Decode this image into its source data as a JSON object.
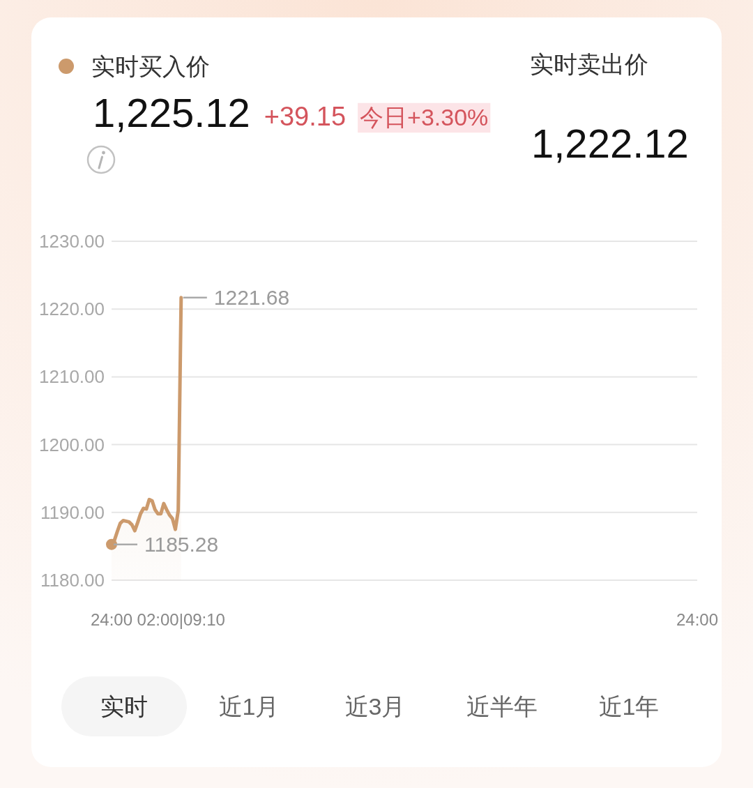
{
  "chart_data": {
    "type": "area",
    "categories": [
      "24:00",
      null,
      null,
      null,
      null,
      null,
      null,
      null,
      null,
      null,
      null,
      null,
      null,
      null,
      null,
      null,
      null,
      null,
      null,
      null,
      null,
      null,
      null,
      null,
      "02:00|09:10",
      null,
      null,
      null,
      null,
      null,
      null,
      null,
      null,
      null,
      null,
      null,
      null,
      null,
      null,
      null,
      null,
      null,
      null,
      null,
      null,
      null,
      null,
      null,
      null,
      null,
      null,
      null,
      null,
      null,
      null,
      null,
      null,
      null,
      null,
      null,
      null,
      null,
      null,
      null,
      null,
      null,
      null,
      null,
      null,
      null,
      null,
      null,
      null,
      null,
      null,
      null,
      null,
      null,
      null,
      null,
      null,
      null,
      null,
      null,
      null,
      null,
      null,
      null,
      null,
      null,
      null,
      null,
      null,
      null,
      null,
      null,
      null,
      null,
      null,
      null,
      null,
      null,
      null,
      null,
      null,
      null,
      null,
      null,
      null,
      null,
      null,
      null,
      null,
      null,
      null,
      null,
      null,
      null,
      null,
      null,
      null,
      null,
      null,
      null,
      null,
      null,
      null,
      null,
      null,
      null,
      null,
      null,
      null,
      null,
      null,
      null,
      null,
      null,
      null,
      null,
      null,
      null,
      null,
      null,
      null,
      null,
      null,
      null,
      null,
      null,
      null,
      null,
      null,
      null,
      null,
      null,
      null,
      null,
      null,
      null,
      null,
      null,
      null,
      null,
      null,
      null,
      null,
      null,
      null,
      null,
      null,
      null,
      null,
      null,
      null,
      null,
      null,
      null,
      null,
      null,
      null,
      null,
      null,
      null,
      null,
      null,
      null,
      null,
      null,
      null,
      null,
      null,
      null,
      null,
      null,
      null,
      null,
      null,
      null,
      null,
      null,
      null,
      "24:00"
    ],
    "series": [
      {
        "name": "实时买入价",
        "color": "#cc9a6c",
        "values": [
          1185.28,
          1185.9,
          1187.2,
          1188.4,
          1188.8,
          1188.7,
          1188.6,
          1188.2,
          1187.3,
          1188.5,
          1189.8,
          1190.6,
          1190.5,
          1191.9,
          1191.7,
          1190.4,
          1189.8,
          1189.8,
          1191.3,
          1190.4,
          1189.6,
          1189.1,
          1187.5,
          1190.3,
          1221.68,
          null,
          null,
          null,
          null,
          null,
          null,
          null,
          null,
          null,
          null,
          null,
          null,
          null,
          null,
          null,
          null,
          null,
          null,
          null,
          null,
          null,
          null,
          null,
          null,
          null,
          null,
          null,
          null,
          null,
          null,
          null,
          null,
          null,
          null,
          null,
          null,
          null,
          null,
          null,
          null,
          null,
          null,
          null,
          null,
          null,
          null,
          null,
          null,
          null,
          null,
          null,
          null,
          null,
          null,
          null,
          null,
          null,
          null,
          null,
          null,
          null,
          null,
          null,
          null,
          null,
          null,
          null,
          null,
          null,
          null,
          null,
          null,
          null,
          null,
          null,
          null,
          null,
          null,
          null,
          null,
          null,
          null,
          null,
          null,
          null,
          null,
          null,
          null,
          null,
          null,
          null,
          null,
          null,
          null,
          null,
          null,
          null,
          null,
          null,
          null,
          null,
          null,
          null,
          null,
          null,
          null,
          null,
          null,
          null,
          null,
          null,
          null,
          null,
          null,
          null,
          null,
          null,
          null,
          null,
          null,
          null,
          null,
          null,
          null,
          null,
          null,
          null,
          null,
          null,
          null,
          null,
          null,
          null,
          null,
          null,
          null,
          null,
          null,
          null,
          null,
          null,
          null,
          null,
          null,
          null,
          null,
          null,
          null,
          null,
          null,
          null,
          null,
          null,
          null,
          null,
          null,
          null,
          null,
          null,
          null,
          null,
          null,
          null,
          null,
          null,
          null,
          null,
          null,
          null,
          null,
          null,
          null,
          null,
          null,
          null,
          null,
          null,
          null
        ]
      },
      {
        "type": "scatter",
        "color": "#cc9a6c",
        "values": [
          1185.28,
          null,
          null,
          null,
          null,
          null,
          null,
          null,
          null,
          null,
          null,
          null,
          null,
          null,
          null,
          null,
          null,
          null,
          null,
          null,
          null,
          null,
          null,
          null,
          null,
          null,
          null,
          null,
          null,
          null,
          null,
          null,
          null,
          null,
          null,
          null,
          null,
          null,
          null,
          null,
          null,
          null,
          null,
          null,
          null,
          null,
          null,
          null,
          null,
          null,
          null,
          null,
          null,
          null,
          null,
          null,
          null,
          null,
          null,
          null,
          null,
          null,
          null,
          null,
          null,
          null,
          null,
          null,
          null,
          null,
          null,
          null,
          null,
          null,
          null,
          null,
          null,
          null,
          null,
          null,
          null,
          null,
          null,
          null,
          null,
          null,
          null,
          null,
          null,
          null,
          null,
          null,
          null,
          null,
          null,
          null,
          null,
          null,
          null,
          null,
          null,
          null,
          null,
          null,
          null,
          null,
          null,
          null,
          null,
          null,
          null,
          null,
          null,
          null,
          null,
          null,
          null,
          null,
          null,
          null,
          null,
          null,
          null,
          null,
          null,
          null,
          null,
          null,
          null,
          null,
          null,
          null,
          null,
          null,
          null,
          null,
          null,
          null,
          null,
          null,
          null,
          null,
          null,
          null,
          null,
          null,
          null,
          null,
          null,
          null,
          null,
          null,
          null,
          null,
          null,
          null,
          null,
          null,
          null,
          null,
          null,
          null,
          null,
          null,
          null,
          null,
          null,
          null,
          null,
          null,
          null,
          null,
          null,
          null,
          null,
          null,
          null,
          null,
          null,
          null,
          null,
          null,
          null,
          null,
          null,
          null,
          null,
          null,
          null,
          null,
          null,
          null,
          null,
          null,
          null,
          null,
          null,
          null,
          null,
          null,
          null,
          null,
          null
        ]
      }
    ],
    "ylim": [
      1180,
      1230
    ],
    "yticks": [
      {
        "value": 1180,
        "label": "1180.00"
      },
      {
        "value": 1190,
        "label": "1190.00"
      },
      {
        "value": 1200,
        "label": "1200.00"
      },
      {
        "value": 1210,
        "label": "1210.00"
      },
      {
        "value": 1220,
        "label": "1220.00"
      },
      {
        "value": 1230,
        "label": "1230.00"
      }
    ],
    "grid": "y",
    "legend": "top left",
    "annotations": [
      "1,225.12",
      "+39.15",
      "今日+3.30%",
      "实时卖出价",
      "1,222.12",
      "实时",
      "近1月",
      "近3月",
      "近半年",
      "近1年",
      {
        "text": "1221.68",
        "x": "02:00|09:10",
        "y": 1221.68
      },
      {
        "text": "1185.28",
        "x": "24:00",
        "y": 1185.28
      }
    ]
  }
}
